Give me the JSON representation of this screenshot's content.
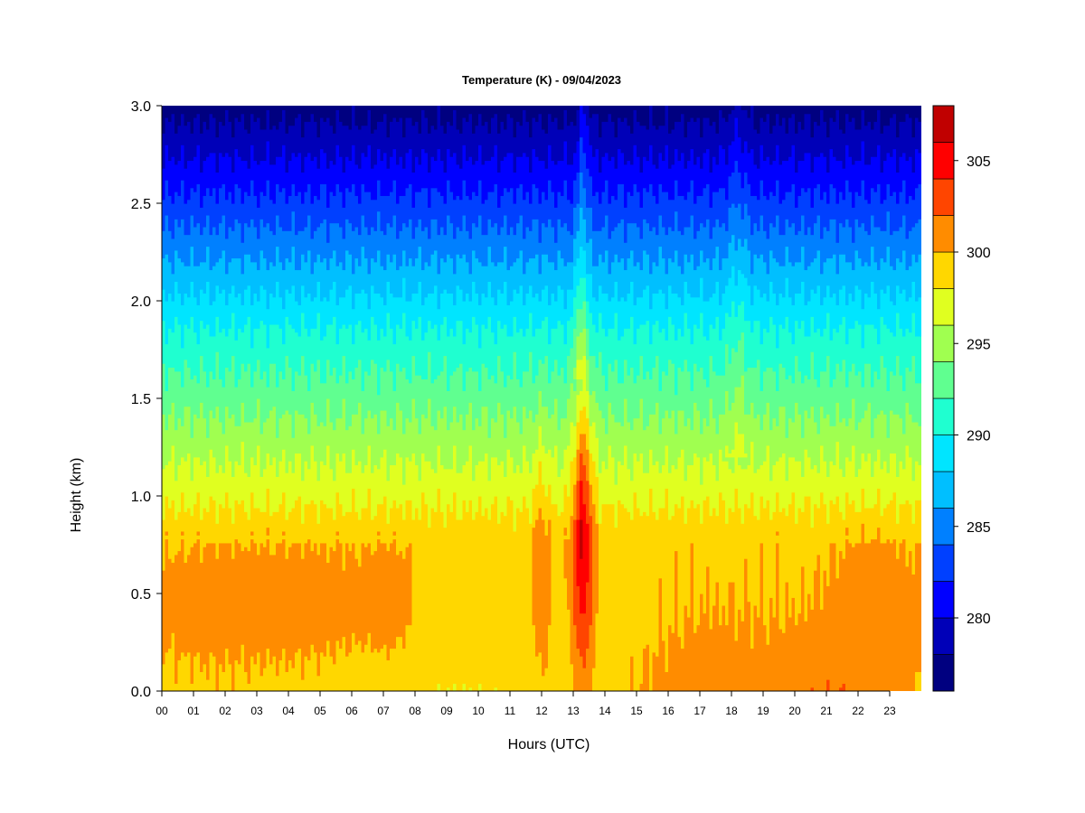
{
  "chart_data": {
    "type": "heatmap",
    "title": "Temperature (K) - 09/04/2023",
    "xlabel": "Hours (UTC)",
    "ylabel": "Height (km)",
    "xlim": [
      0,
      24
    ],
    "ylim": [
      0,
      3
    ],
    "x_tick_labels": [
      "00",
      "01",
      "02",
      "03",
      "04",
      "05",
      "06",
      "07",
      "08",
      "09",
      "10",
      "11",
      "12",
      "13",
      "14",
      "15",
      "16",
      "17",
      "18",
      "19",
      "20",
      "21",
      "22",
      "23"
    ],
    "y_ticks": [
      0.0,
      0.5,
      1.0,
      1.5,
      2.0,
      2.5,
      3.0
    ],
    "y_tick_labels": [
      "0.0",
      "0.5",
      "1.0",
      "1.5",
      "2.0",
      "2.5",
      "3.0"
    ],
    "colorbar": {
      "min": 276,
      "max": 308,
      "step": 2,
      "ticks": [
        280,
        285,
        290,
        295,
        300,
        305
      ],
      "tick_labels": [
        "280",
        "285",
        "290",
        "295",
        "300",
        "305"
      ],
      "colors": [
        "#000080",
        "#0000b8",
        "#0000ff",
        "#0040ff",
        "#0080ff",
        "#00bfff",
        "#00e5ff",
        "#1fffd0",
        "#60ff90",
        "#a0ff50",
        "#e0ff20",
        "#ffd700",
        "#ff8c00",
        "#ff4500",
        "#ff0000",
        "#c00000",
        "#800000"
      ]
    },
    "grid": false,
    "legend": "colorbar-right"
  }
}
